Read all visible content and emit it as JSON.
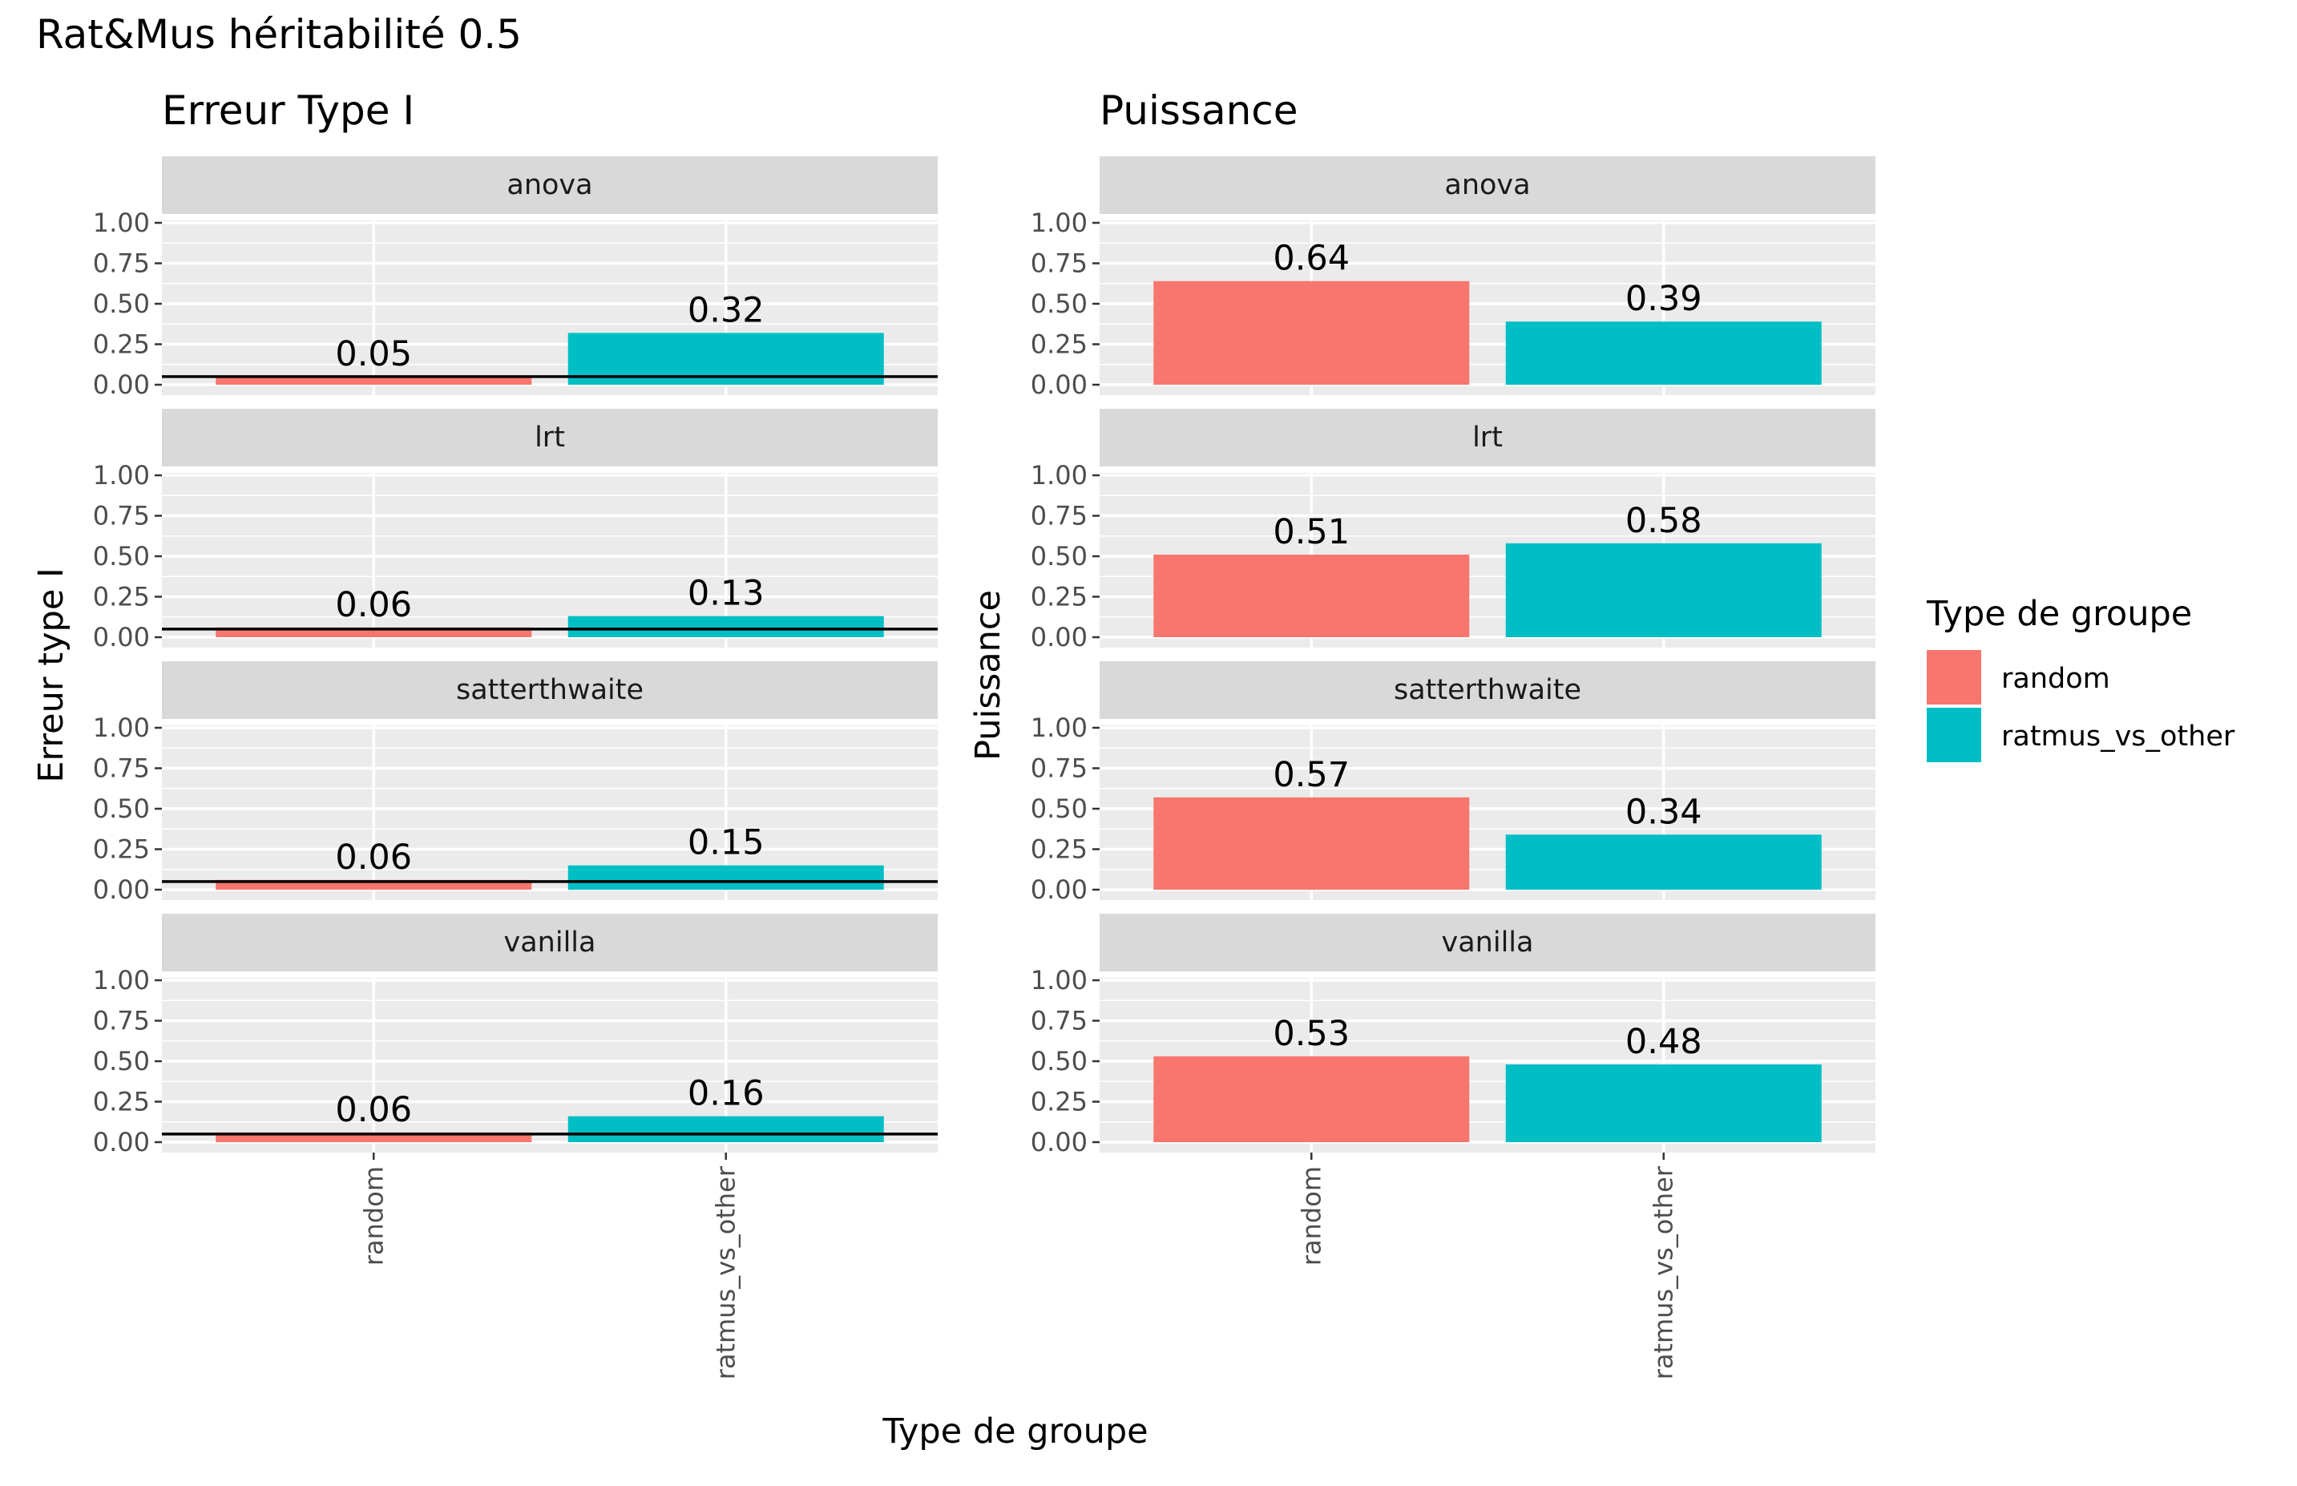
{
  "title": "Rat&Mus héritabilité  0.5",
  "colors": {
    "random": "#F8766D",
    "ratmus_vs_other": "#00BFC4",
    "panel_bg": "#EBEBEB",
    "strip_bg": "#D9D9D9",
    "grid": "#FFFFFF",
    "ref_line": "#000000"
  },
  "x_axis_label": "Type de groupe",
  "legend": {
    "title": "Type de groupe",
    "items": [
      {
        "key": "random",
        "label": "random"
      },
      {
        "key": "ratmus_vs_other",
        "label": "ratmus_vs_other"
      }
    ]
  },
  "chart_data": [
    {
      "type": "bar",
      "title": "Erreur Type I",
      "ylabel": "Erreur type I",
      "xlabel": "Type de groupe",
      "categories": [
        "random",
        "ratmus_vs_other"
      ],
      "y_ticks": [
        "0.00",
        "0.25",
        "0.50",
        "0.75",
        "1.00"
      ],
      "ylim": [
        0,
        1
      ],
      "reference_line": 0.05,
      "facets": [
        {
          "name": "anova",
          "values": [
            0.05,
            0.32
          ],
          "labels": [
            "0.05",
            "0.32"
          ]
        },
        {
          "name": "lrt",
          "values": [
            0.06,
            0.13
          ],
          "labels": [
            "0.06",
            "0.13"
          ]
        },
        {
          "name": "satterthwaite",
          "values": [
            0.06,
            0.15
          ],
          "labels": [
            "0.06",
            "0.15"
          ]
        },
        {
          "name": "vanilla",
          "values": [
            0.06,
            0.16
          ],
          "labels": [
            "0.06",
            "0.16"
          ]
        }
      ]
    },
    {
      "type": "bar",
      "title": "Puissance",
      "ylabel": "Puissance",
      "xlabel": "Type de groupe",
      "categories": [
        "random",
        "ratmus_vs_other"
      ],
      "y_ticks": [
        "0.00",
        "0.25",
        "0.50",
        "0.75",
        "1.00"
      ],
      "ylim": [
        0,
        1
      ],
      "reference_line": null,
      "facets": [
        {
          "name": "anova",
          "values": [
            0.64,
            0.39
          ],
          "labels": [
            "0.64",
            "0.39"
          ]
        },
        {
          "name": "lrt",
          "values": [
            0.51,
            0.58
          ],
          "labels": [
            "0.51",
            "0.58"
          ]
        },
        {
          "name": "satterthwaite",
          "values": [
            0.57,
            0.34
          ],
          "labels": [
            "0.57",
            "0.34"
          ]
        },
        {
          "name": "vanilla",
          "values": [
            0.53,
            0.48
          ],
          "labels": [
            "0.53",
            "0.48"
          ]
        }
      ]
    }
  ]
}
